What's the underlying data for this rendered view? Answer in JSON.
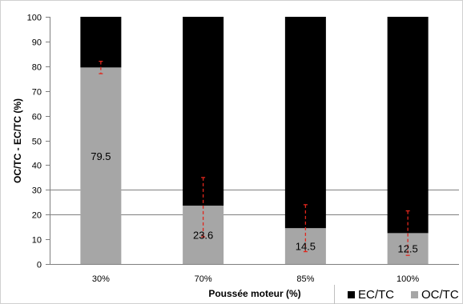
{
  "chart_data": {
    "type": "bar",
    "stacked": true,
    "categories": [
      "30%",
      "70%",
      "85%",
      "100%"
    ],
    "series": [
      {
        "name": "OC/TC",
        "values": [
          79.5,
          23.6,
          14.5,
          12.5
        ],
        "color": "#a6a6a6"
      },
      {
        "name": "EC/TC",
        "values": [
          20.5,
          76.4,
          85.5,
          87.5
        ],
        "color": "#000000"
      }
    ],
    "data_labels": [
      "79.5",
      "23.6",
      "14.5",
      "12.5"
    ],
    "error_bars": [
      {
        "low": 77,
        "high": 82
      },
      {
        "low": 11,
        "high": 35
      },
      {
        "low": 5,
        "high": 24
      },
      {
        "low": 3.5,
        "high": 21.5
      }
    ],
    "error_bar_color": "#e0261c",
    "xlabel": "Poussée moteur (%)",
    "ylabel": "OC/TC - EC/TC (%)",
    "ylim": [
      0,
      100
    ],
    "yticks": [
      0,
      10,
      20,
      30,
      40,
      50,
      60,
      70,
      80,
      90,
      100
    ],
    "gridlines_at": [
      20,
      30
    ],
    "legend_position": "bottom-right",
    "legend": [
      {
        "label": "EC/TC",
        "color": "#000000"
      },
      {
        "label": "OC/TC",
        "color": "#a6a6a6"
      }
    ]
  }
}
